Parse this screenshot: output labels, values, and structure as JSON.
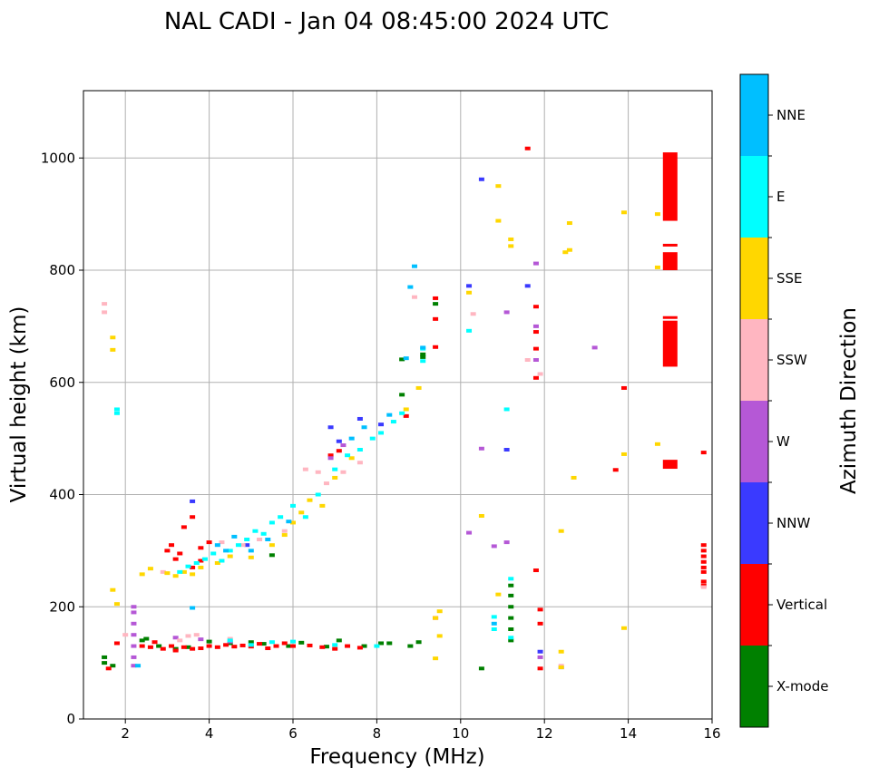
{
  "chart_data": {
    "type": "scatter",
    "title": "NAL CADI - Jan 04 08:45:00 2024 UTC",
    "xlabel": "Frequency (MHz)",
    "ylabel": "Virtual height (km)",
    "xlim": [
      1,
      16
    ],
    "ylim": [
      0,
      1120
    ],
    "xticks": [
      2,
      4,
      6,
      8,
      10,
      12,
      14,
      16
    ],
    "yticks": [
      0,
      200,
      400,
      600,
      800,
      1000
    ],
    "grid": true,
    "colorbar": {
      "label": "Azimuth Direction",
      "categories": [
        "X-mode",
        "Vertical",
        "NNW",
        "W",
        "SSW",
        "SSE",
        "E",
        "NNE"
      ],
      "colors": [
        "#008000",
        "#ff0000",
        "#3a3aff",
        "#b558d6",
        "#ffb6c1",
        "#ffd700",
        "#00ffff",
        "#00bfff"
      ]
    },
    "series": [
      {
        "name": "X-mode",
        "points": [
          [
            1.5,
            100
          ],
          [
            1.5,
            110
          ],
          [
            1.7,
            95
          ],
          [
            2.4,
            140
          ],
          [
            2.5,
            143
          ],
          [
            2.8,
            130
          ],
          [
            3.2,
            125
          ],
          [
            3.5,
            128
          ],
          [
            4.0,
            138
          ],
          [
            4.5,
            135
          ],
          [
            5.0,
            137
          ],
          [
            5.3,
            134
          ],
          [
            5.5,
            292
          ],
          [
            5.9,
            130
          ],
          [
            6.2,
            136
          ],
          [
            6.8,
            129
          ],
          [
            7.1,
            140
          ],
          [
            7.7,
            130
          ],
          [
            8.1,
            135
          ],
          [
            8.3,
            135
          ],
          [
            8.8,
            130
          ],
          [
            9.0,
            137
          ],
          [
            8.6,
            578
          ],
          [
            8.6,
            641
          ],
          [
            9.1,
            645
          ],
          [
            9.1,
            650
          ],
          [
            9.4,
            740
          ],
          [
            10.5,
            90
          ],
          [
            11.2,
            140
          ],
          [
            11.2,
            160
          ],
          [
            11.2,
            180
          ],
          [
            11.2,
            200
          ],
          [
            11.2,
            220
          ],
          [
            11.2,
            238
          ]
        ]
      },
      {
        "name": "Vertical",
        "points": [
          [
            1.6,
            90
          ],
          [
            1.8,
            135
          ],
          [
            2.4,
            130
          ],
          [
            2.6,
            128
          ],
          [
            2.7,
            137
          ],
          [
            2.9,
            125
          ],
          [
            3.1,
            130
          ],
          [
            3.2,
            122
          ],
          [
            3.4,
            128
          ],
          [
            3.6,
            125
          ],
          [
            3.8,
            126
          ],
          [
            4.0,
            130
          ],
          [
            4.2,
            128
          ],
          [
            4.4,
            132
          ],
          [
            4.6,
            129
          ],
          [
            4.8,
            131
          ],
          [
            5.0,
            129
          ],
          [
            5.2,
            134
          ],
          [
            5.4,
            126
          ],
          [
            5.6,
            130
          ],
          [
            5.8,
            135
          ],
          [
            6.0,
            130
          ],
          [
            6.4,
            131
          ],
          [
            6.7,
            128
          ],
          [
            7.0,
            125
          ],
          [
            7.3,
            130
          ],
          [
            7.6,
            127
          ],
          [
            3.0,
            300
          ],
          [
            3.1,
            310
          ],
          [
            3.2,
            285
          ],
          [
            3.3,
            295
          ],
          [
            3.4,
            342
          ],
          [
            3.6,
            360
          ],
          [
            3.8,
            305
          ],
          [
            4.0,
            315
          ],
          [
            3.6,
            270
          ],
          [
            3.8,
            282
          ],
          [
            6.9,
            470
          ],
          [
            7.1,
            478
          ],
          [
            8.7,
            540
          ],
          [
            9.4,
            713
          ],
          [
            9.4,
            750
          ],
          [
            9.4,
            663
          ],
          [
            9.4,
            180
          ],
          [
            11.8,
            608
          ],
          [
            11.8,
            660
          ],
          [
            11.8,
            690
          ],
          [
            11.8,
            735
          ],
          [
            11.8,
            265
          ],
          [
            11.9,
            195
          ],
          [
            11.9,
            170
          ],
          [
            11.9,
            90
          ],
          [
            11.6,
            1017
          ],
          [
            13.7,
            444
          ],
          [
            13.9,
            590
          ],
          [
            15.8,
            475
          ],
          [
            15.8,
            310
          ],
          [
            15.8,
            300
          ],
          [
            15.8,
            290
          ],
          [
            15.8,
            280
          ],
          [
            15.8,
            270
          ],
          [
            15.8,
            262
          ],
          [
            15.8,
            245
          ],
          [
            15.8,
            238
          ]
        ]
      },
      {
        "name": "NNW",
        "points": [
          [
            3.6,
            388
          ],
          [
            4.9,
            310
          ],
          [
            6.9,
            520
          ],
          [
            7.1,
            495
          ],
          [
            7.6,
            535
          ],
          [
            8.1,
            525
          ],
          [
            10.2,
            772
          ],
          [
            10.5,
            962
          ],
          [
            11.6,
            772
          ],
          [
            11.9,
            120
          ],
          [
            12.4,
            92
          ],
          [
            11.1,
            480
          ]
        ]
      },
      {
        "name": "W",
        "points": [
          [
            2.2,
            95
          ],
          [
            2.2,
            110
          ],
          [
            2.2,
            130
          ],
          [
            2.2,
            150
          ],
          [
            2.2,
            170
          ],
          [
            2.2,
            190
          ],
          [
            2.2,
            200
          ],
          [
            3.2,
            145
          ],
          [
            3.8,
            142
          ],
          [
            4.5,
            138
          ],
          [
            6.9,
            465
          ],
          [
            7.2,
            488
          ],
          [
            10.2,
            332
          ],
          [
            10.5,
            482
          ],
          [
            10.8,
            308
          ],
          [
            11.1,
            315
          ],
          [
            11.1,
            725
          ],
          [
            11.8,
            640
          ],
          [
            11.8,
            700
          ],
          [
            11.8,
            812
          ],
          [
            13.2,
            662
          ],
          [
            11.9,
            110
          ]
        ]
      },
      {
        "name": "SSW",
        "points": [
          [
            1.5,
            740
          ],
          [
            1.5,
            725
          ],
          [
            2.0,
            150
          ],
          [
            2.9,
            262
          ],
          [
            3.3,
            140
          ],
          [
            3.5,
            148
          ],
          [
            3.7,
            150
          ],
          [
            4.3,
            315
          ],
          [
            4.5,
            143
          ],
          [
            4.8,
            310
          ],
          [
            5.2,
            320
          ],
          [
            5.8,
            335
          ],
          [
            6.3,
            445
          ],
          [
            6.6,
            440
          ],
          [
            6.8,
            420
          ],
          [
            7.2,
            440
          ],
          [
            7.6,
            457
          ],
          [
            8.9,
            752
          ],
          [
            10.3,
            722
          ],
          [
            11.6,
            640
          ],
          [
            11.9,
            615
          ],
          [
            12.4,
            95
          ],
          [
            15.8,
            235
          ]
        ]
      },
      {
        "name": "SSE",
        "points": [
          [
            1.7,
            680
          ],
          [
            1.7,
            658
          ],
          [
            1.7,
            230
          ],
          [
            1.8,
            205
          ],
          [
            2.4,
            258
          ],
          [
            2.6,
            268
          ],
          [
            3.0,
            260
          ],
          [
            3.2,
            255
          ],
          [
            3.4,
            262
          ],
          [
            3.6,
            258
          ],
          [
            3.8,
            270
          ],
          [
            4.2,
            278
          ],
          [
            4.5,
            290
          ],
          [
            5.0,
            288
          ],
          [
            5.5,
            310
          ],
          [
            5.8,
            328
          ],
          [
            6.0,
            350
          ],
          [
            6.2,
            368
          ],
          [
            6.4,
            390
          ],
          [
            6.7,
            380
          ],
          [
            7.0,
            430
          ],
          [
            7.4,
            465
          ],
          [
            8.7,
            552
          ],
          [
            9.0,
            590
          ],
          [
            9.4,
            180
          ],
          [
            9.5,
            192
          ],
          [
            9.5,
            148
          ],
          [
            9.4,
            108
          ],
          [
            10.2,
            760
          ],
          [
            10.5,
            362
          ],
          [
            10.9,
            950
          ],
          [
            10.9,
            888
          ],
          [
            10.9,
            222
          ],
          [
            11.2,
            855
          ],
          [
            11.2,
            843
          ],
          [
            12.4,
            120
          ],
          [
            12.4,
            335
          ],
          [
            12.4,
            92
          ],
          [
            12.5,
            832
          ],
          [
            12.6,
            836
          ],
          [
            12.6,
            884
          ],
          [
            12.7,
            430
          ],
          [
            13.9,
            903
          ],
          [
            13.9,
            472
          ],
          [
            13.9,
            162
          ],
          [
            14.7,
            805
          ],
          [
            14.7,
            900
          ],
          [
            14.7,
            490
          ]
        ]
      },
      {
        "name": "E",
        "points": [
          [
            1.8,
            545
          ],
          [
            1.8,
            552
          ],
          [
            3.3,
            262
          ],
          [
            3.5,
            272
          ],
          [
            3.7,
            278
          ],
          [
            3.9,
            285
          ],
          [
            4.1,
            295
          ],
          [
            4.3,
            282
          ],
          [
            4.5,
            300
          ],
          [
            4.7,
            310
          ],
          [
            4.9,
            320
          ],
          [
            5.1,
            335
          ],
          [
            5.3,
            330
          ],
          [
            5.5,
            350
          ],
          [
            5.7,
            360
          ],
          [
            6.0,
            380
          ],
          [
            6.3,
            360
          ],
          [
            6.6,
            400
          ],
          [
            7.0,
            445
          ],
          [
            7.3,
            470
          ],
          [
            7.6,
            480
          ],
          [
            7.9,
            500
          ],
          [
            8.1,
            510
          ],
          [
            8.4,
            530
          ],
          [
            8.6,
            545
          ],
          [
            4.5,
            140
          ],
          [
            5.0,
            132
          ],
          [
            5.5,
            137
          ],
          [
            6.0,
            138
          ],
          [
            7.0,
            132
          ],
          [
            8.0,
            130
          ],
          [
            9.1,
            660
          ],
          [
            9.1,
            638
          ],
          [
            10.2,
            692
          ],
          [
            10.8,
            160
          ],
          [
            10.8,
            182
          ],
          [
            11.1,
            552
          ],
          [
            11.2,
            250
          ],
          [
            11.2,
            145
          ]
        ]
      },
      {
        "name": "NNE",
        "points": [
          [
            3.6,
            198
          ],
          [
            4.2,
            310
          ],
          [
            4.4,
            300
          ],
          [
            4.6,
            325
          ],
          [
            5.0,
            300
          ],
          [
            5.4,
            320
          ],
          [
            5.9,
            352
          ],
          [
            7.4,
            500
          ],
          [
            7.7,
            520
          ],
          [
            8.3,
            542
          ],
          [
            8.7,
            643
          ],
          [
            8.8,
            770
          ],
          [
            8.9,
            807
          ],
          [
            9.1,
            662
          ],
          [
            10.8,
            170
          ],
          [
            2.3,
            95
          ]
        ]
      }
    ],
    "bars": [
      {
        "name": "Vertical",
        "x": 15.0,
        "y_ranges": [
          [
            888,
            1010
          ],
          [
            843,
            847
          ],
          [
            800,
            832
          ],
          [
            628,
            710
          ],
          [
            714,
            718
          ],
          [
            446,
            462
          ]
        ]
      }
    ]
  }
}
